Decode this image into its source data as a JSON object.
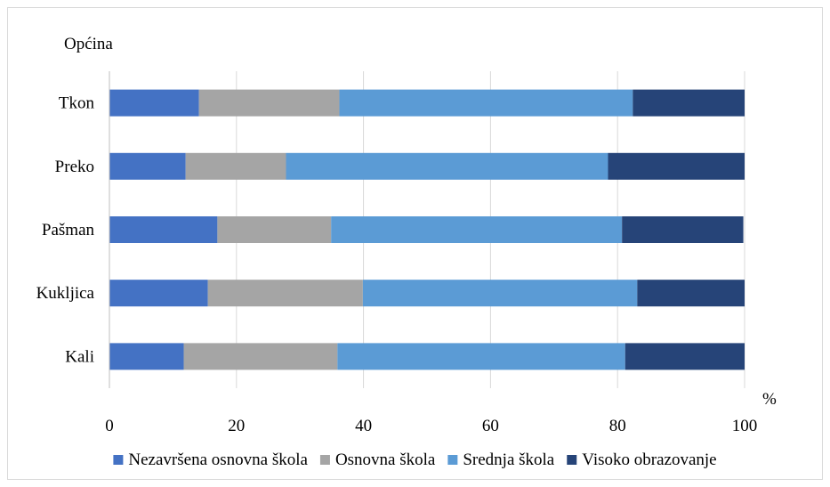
{
  "chart_data": {
    "type": "bar",
    "orientation": "horizontal",
    "stacked": true,
    "y_axis_title": "Općina",
    "x_unit": "%",
    "categories": [
      "Tkon",
      "Preko",
      "Pašman",
      "Kukljica",
      "Kali"
    ],
    "xlim": [
      0,
      100
    ],
    "xticks": [
      "0",
      "20",
      "40",
      "60",
      "80",
      "100"
    ],
    "grid": "vertical",
    "legend_position": "bottom",
    "series": [
      {
        "name": "Nezavršena osnovna škola",
        "color": "#4472c4",
        "values": [
          14.1,
          12.0,
          17.0,
          15.5,
          11.7
        ]
      },
      {
        "name": "Osnovna škola",
        "color": "#a5a5a5",
        "values": [
          22.1,
          15.8,
          17.9,
          24.4,
          24.2
        ]
      },
      {
        "name": "Srednja škola",
        "color": "#5b9bd5",
        "values": [
          46.2,
          50.7,
          45.8,
          43.2,
          45.3
        ]
      },
      {
        "name": "Visoko obrazovanje",
        "color": "#264478",
        "values": [
          17.6,
          21.5,
          19.1,
          16.9,
          18.8
        ]
      }
    ]
  }
}
